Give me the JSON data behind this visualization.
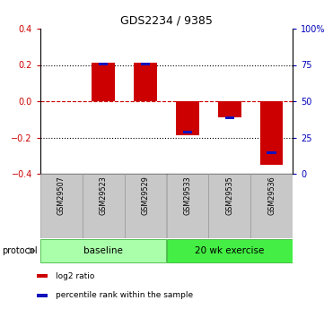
{
  "title": "GDS2234 / 9385",
  "samples": [
    "GSM29507",
    "GSM29523",
    "GSM29529",
    "GSM29533",
    "GSM29535",
    "GSM29536"
  ],
  "log2_ratio": [
    0.0,
    0.21,
    0.21,
    -0.19,
    -0.09,
    -0.35
  ],
  "percentile_rank_scaled": [
    0.0,
    0.205,
    0.205,
    -0.17,
    -0.09,
    -0.285
  ],
  "ylim": [
    -0.4,
    0.4
  ],
  "yticks_left": [
    -0.4,
    -0.2,
    0.0,
    0.2,
    0.4
  ],
  "yticks_right": [
    0,
    25,
    50,
    75,
    100
  ],
  "yticks_right_scaled": [
    -0.4,
    -0.2,
    0.0,
    0.2,
    0.4
  ],
  "bar_color": "#cc0000",
  "percentile_color": "#1111bb",
  "zero_line_color": "#cc0000",
  "dotted_line_color": "#000000",
  "groups": [
    {
      "label": "baseline",
      "color": "#aaffaa",
      "darker": "#55cc55"
    },
    {
      "label": "20 wk exercise",
      "color": "#44ee44",
      "darker": "#22aa22"
    }
  ],
  "protocol_label": "protocol",
  "legend_items": [
    {
      "label": "log2 ratio",
      "color": "#cc0000"
    },
    {
      "label": "percentile rank within the sample",
      "color": "#1111bb"
    }
  ],
  "bg_color": "#ffffff",
  "plot_bg_color": "#ffffff",
  "tick_color_left": "#cc0000",
  "tick_color_right": "#0000bb",
  "bar_width": 0.55,
  "pct_bar_width": 0.22,
  "pct_bar_thickness": 0.016,
  "sample_box_color": "#c8c8c8",
  "sample_box_edge": "#999999"
}
